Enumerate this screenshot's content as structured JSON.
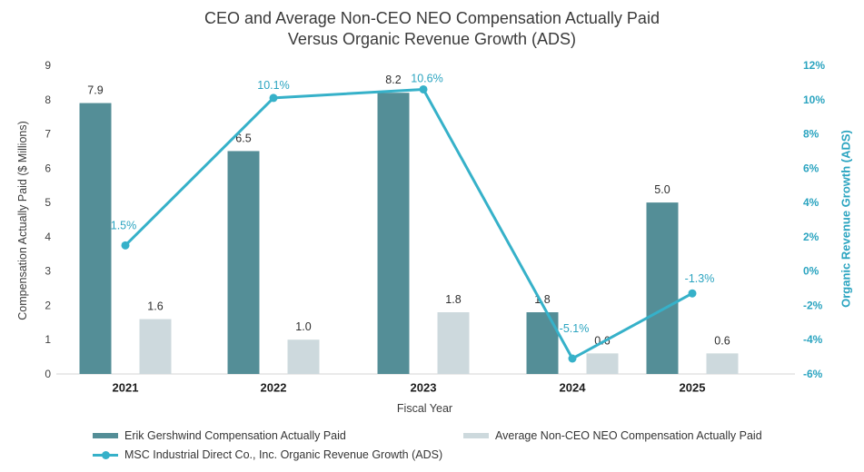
{
  "title": {
    "line1": "CEO and Average Non-CEO NEO Compensation Actually Paid",
    "line2": "Versus Organic Revenue Growth (ADS)"
  },
  "colors": {
    "ceo_bar": "#548e97",
    "neo_bar": "#cdd9dd",
    "line": "#36b1c9",
    "teal_text": "#2ba4c0",
    "axis_line": "#d6d6d6"
  },
  "chart_data": {
    "type": "bar+line-combo",
    "categories": [
      "2021",
      "2022",
      "2023",
      "2024",
      "2025"
    ],
    "series": [
      {
        "name": "Erik Gershwind Compensation Actually Paid",
        "type": "bar",
        "axis": "left",
        "values": [
          7.9,
          6.5,
          8.2,
          1.8,
          5.0
        ],
        "labels": [
          "7.9",
          "6.5",
          "8.2",
          "1.8",
          "5.0"
        ],
        "color_key": "ceo_bar"
      },
      {
        "name": "Average Non-CEO NEO Compensation Actually Paid",
        "type": "bar",
        "axis": "left",
        "values": [
          1.6,
          1.0,
          1.8,
          0.6,
          0.6
        ],
        "labels": [
          "1.6",
          "1.0",
          "1.8",
          "0.6",
          "0.6"
        ],
        "color_key": "neo_bar"
      },
      {
        "name": "MSC Industrial Direct Co., Inc. Organic Revenue Growth (ADS)",
        "type": "line",
        "axis": "right",
        "values": [
          1.5,
          10.1,
          10.6,
          -5.1,
          -1.3
        ],
        "labels": [
          "1.5%",
          "10.1%",
          "10.6%",
          "-5.1%",
          "-1.3%"
        ],
        "color_key": "line"
      }
    ],
    "left_axis": {
      "title": "Compensation Actually Paid ($ Millions)",
      "min": 0,
      "max": 9,
      "step": 1,
      "ticks": [
        "0",
        "1",
        "2",
        "3",
        "4",
        "5",
        "6",
        "7",
        "8",
        "9"
      ]
    },
    "right_axis": {
      "title": "Organic Revenue Growth (ADS)",
      "min": -6,
      "max": 12,
      "step": 2,
      "ticks": [
        "-6%",
        "-4%",
        "-2%",
        "0%",
        "2%",
        "4%",
        "6%",
        "8%",
        "10%",
        "12%"
      ]
    },
    "x_axis": {
      "title": "Fiscal Year"
    },
    "grid": "off",
    "legend_position": "bottom-left"
  }
}
